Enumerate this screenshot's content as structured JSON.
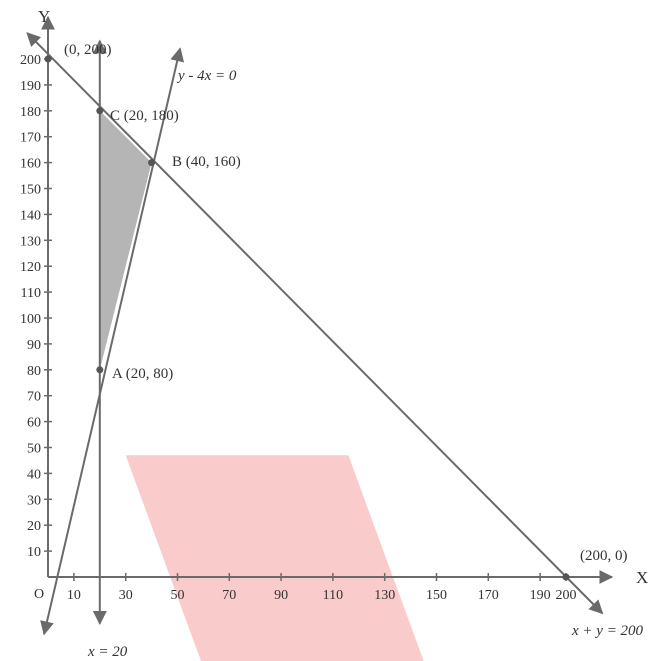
{
  "chart_data": {
    "type": "line",
    "axes": {
      "x_name": "X",
      "y_name": "Y",
      "origin_label": "O",
      "x_ticks": [
        10,
        30,
        50,
        70,
        90,
        110,
        130,
        150,
        170,
        190,
        200
      ],
      "y_ticks": [
        10,
        20,
        30,
        40,
        50,
        60,
        70,
        80,
        90,
        100,
        110,
        120,
        130,
        140,
        150,
        160,
        170,
        180,
        190,
        200
      ],
      "xlim": [
        0,
        210
      ],
      "ylim": [
        0,
        210
      ]
    },
    "lines": [
      {
        "label": "x = 20",
        "points": [
          [
            20,
            -18
          ],
          [
            20,
            207
          ]
        ]
      },
      {
        "label": "y - 4x = 0",
        "points": [
          [
            -1.5,
            -22
          ],
          [
            51,
            204
          ]
        ]
      },
      {
        "label": "x + y = 200",
        "points": [
          [
            -8,
            210
          ],
          [
            214,
            -14
          ]
        ]
      }
    ],
    "feasible_region": {
      "vertices": [
        [
          20,
          80
        ],
        [
          40,
          160
        ],
        [
          20,
          180
        ]
      ],
      "color": "#b5b5b5"
    },
    "shaded_region": {
      "color": "#f8b9ba",
      "vertices": [
        [
          30,
          47
        ],
        [
          116,
          47
        ],
        [
          146,
          -35
        ],
        [
          60,
          -35
        ]
      ]
    },
    "points": [
      {
        "label": "(0, 200)",
        "x": 0,
        "y": 200
      },
      {
        "label": "C (20, 180)",
        "x": 20,
        "y": 180
      },
      {
        "label": "B (40, 160)",
        "x": 40,
        "y": 160
      },
      {
        "label": "A (20, 80)",
        "x": 20,
        "y": 80
      },
      {
        "label": "(200, 0)",
        "x": 200,
        "y": 0
      }
    ],
    "colors": {
      "line": "#6a6a6a",
      "text": "#333333"
    },
    "grid": false
  }
}
